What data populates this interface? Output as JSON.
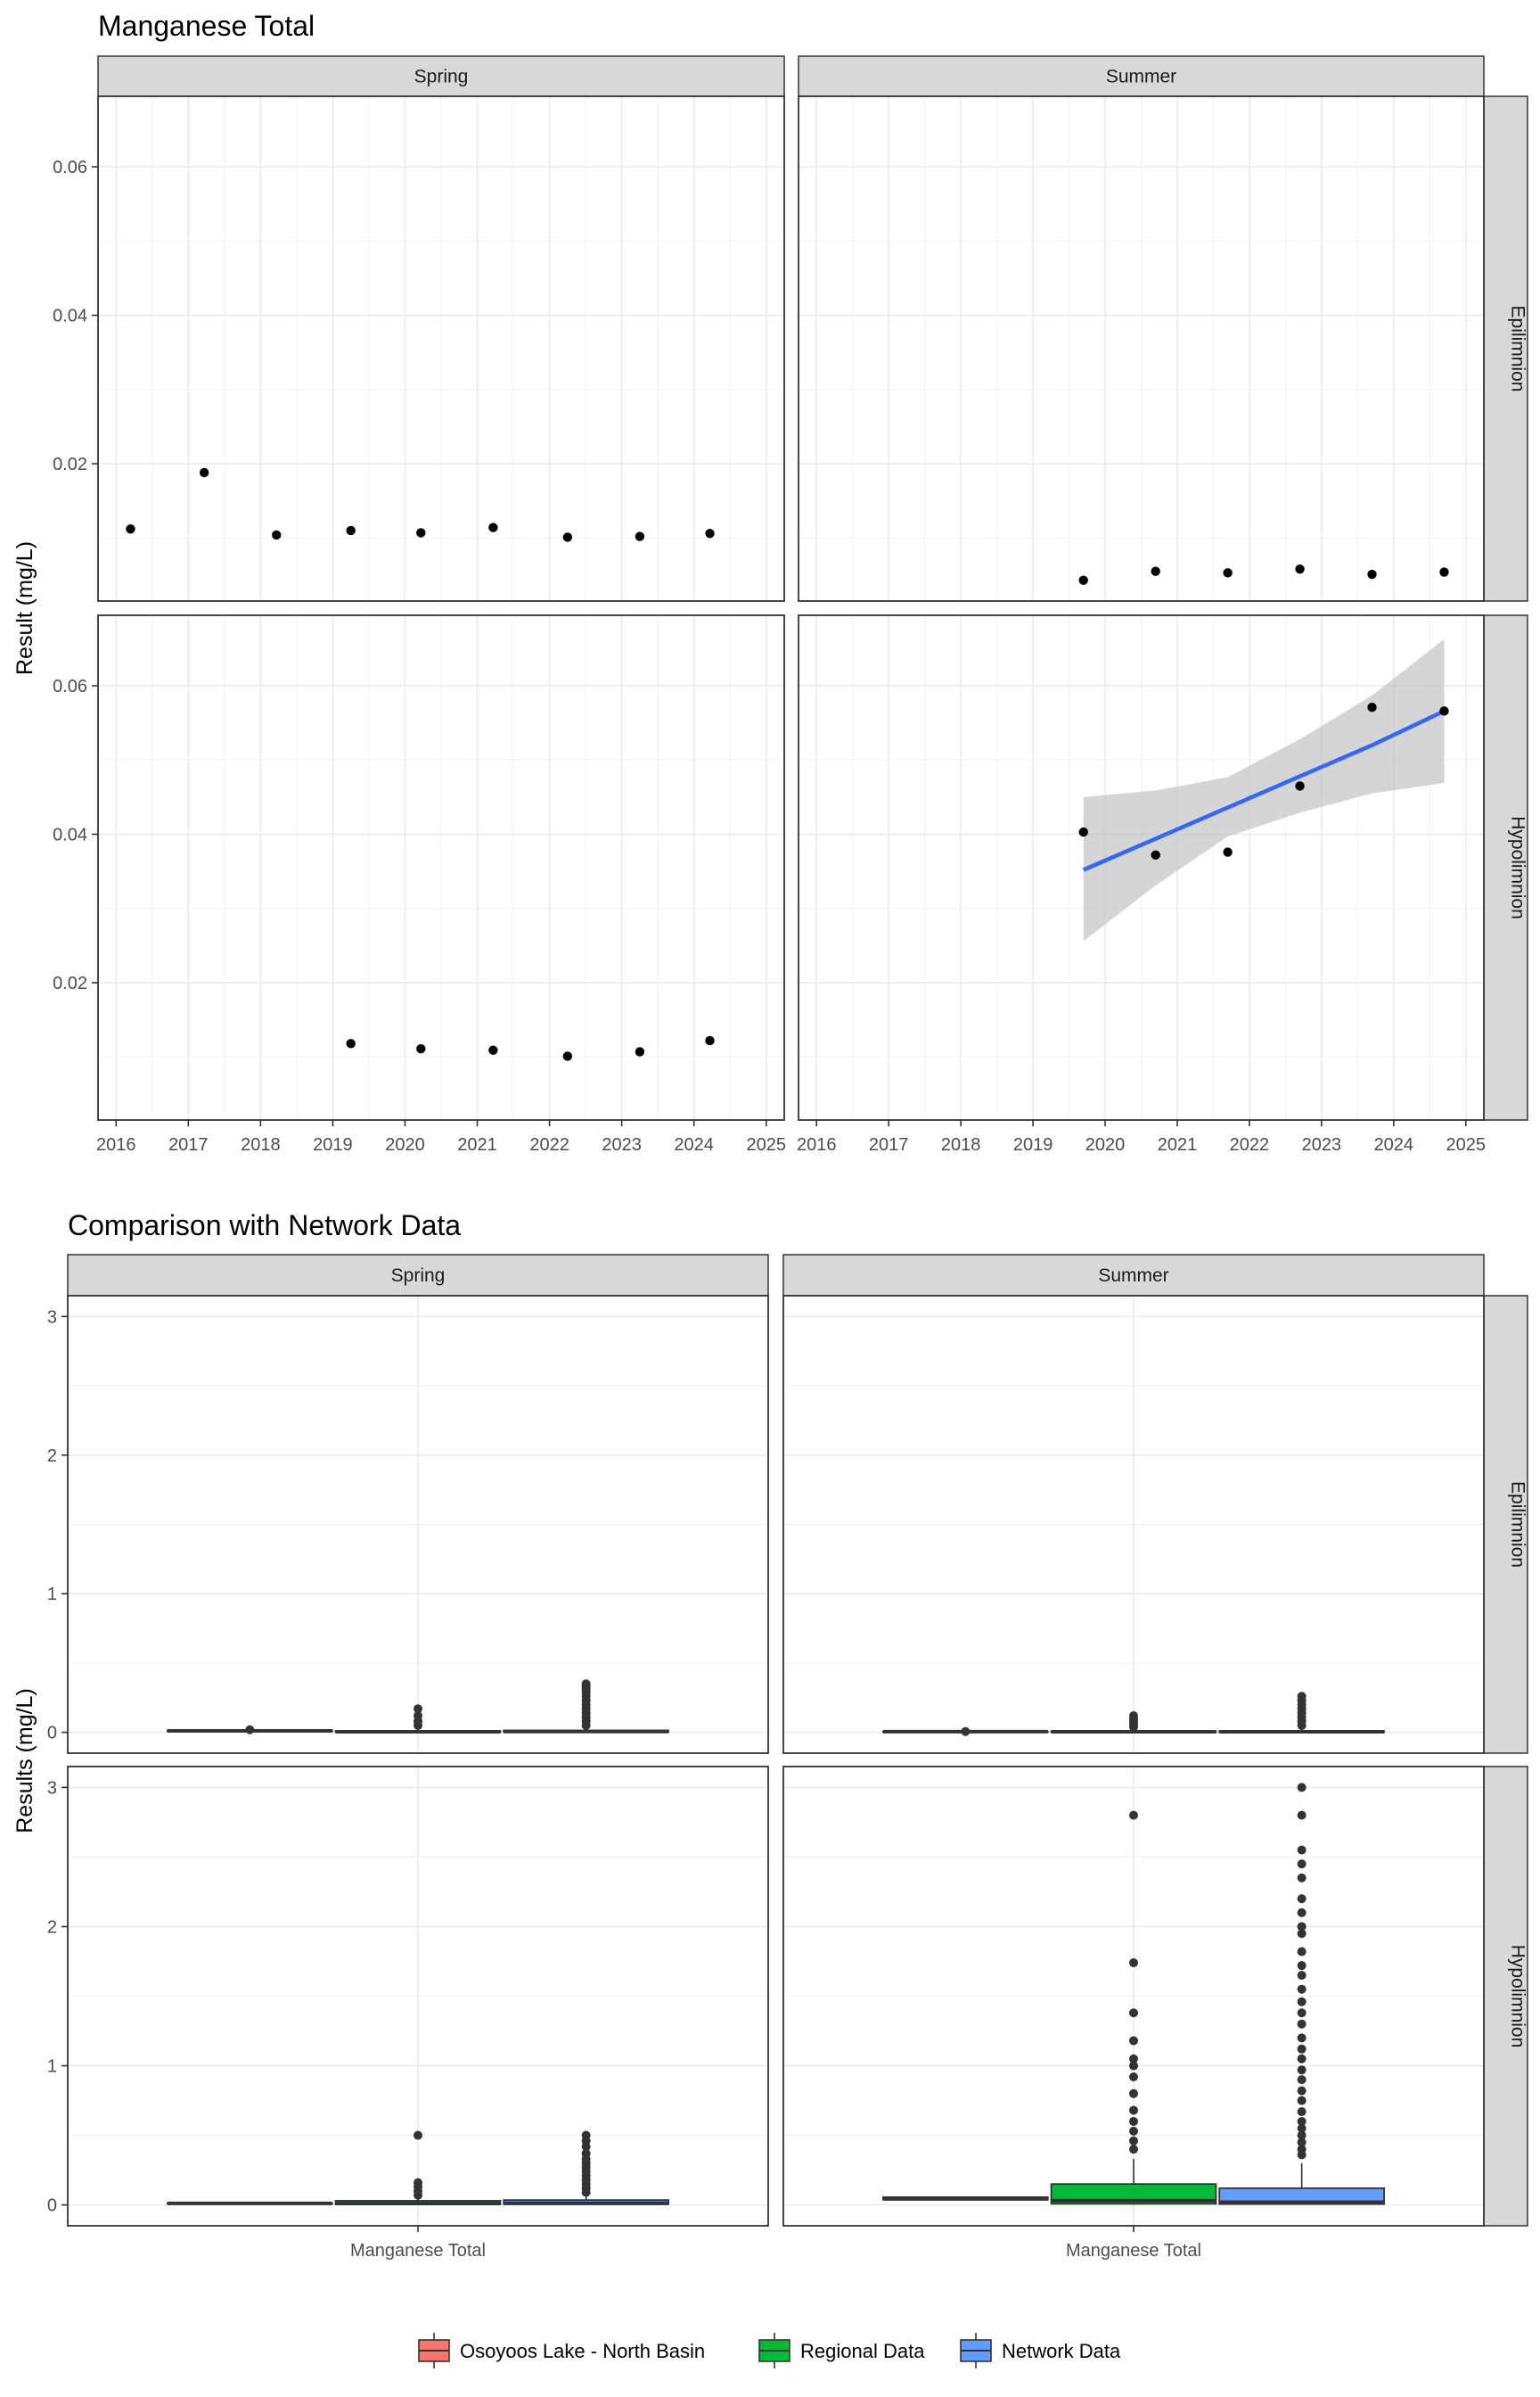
{
  "chart_data": [
    {
      "type": "scatter",
      "title": "Manganese Total",
      "ylabel": "Result (mg/L)",
      "xlabel": "",
      "facet_columns": [
        "Spring",
        "Summer"
      ],
      "facet_rows": [
        "Epilimnion",
        "Hypolimnion"
      ],
      "xlim": [
        2015.75,
        2025.25
      ],
      "ylim": [
        0.0015,
        0.0695
      ],
      "x_ticks": [
        "2016",
        "2017",
        "2018",
        "2019",
        "2020",
        "2021",
        "2022",
        "2023",
        "2024",
        "2025"
      ],
      "y_ticks": [
        "0.02",
        "0.04",
        "0.06"
      ],
      "y_tick_values": [
        0.02,
        0.04,
        0.06
      ],
      "grid": true,
      "point_color": "#000000",
      "trend_color": "#3366FF",
      "ribbon_color": "#BEBEBE",
      "panels": [
        {
          "column": "Spring",
          "row": "Epilimnion",
          "points": [
            {
              "x": 2016.2,
              "y": 0.0112
            },
            {
              "x": 2017.22,
              "y": 0.0188
            },
            {
              "x": 2018.22,
              "y": 0.0104
            },
            {
              "x": 2019.25,
              "y": 0.011
            },
            {
              "x": 2020.22,
              "y": 0.0107
            },
            {
              "x": 2021.22,
              "y": 0.0114
            },
            {
              "x": 2022.25,
              "y": 0.0101
            },
            {
              "x": 2023.25,
              "y": 0.0102
            },
            {
              "x": 2024.22,
              "y": 0.0106
            }
          ]
        },
        {
          "column": "Summer",
          "row": "Epilimnion",
          "points": [
            {
              "x": 2019.7,
              "y": 0.0043
            },
            {
              "x": 2020.7,
              "y": 0.0055
            },
            {
              "x": 2021.7,
              "y": 0.0053
            },
            {
              "x": 2022.7,
              "y": 0.0058
            },
            {
              "x": 2023.7,
              "y": 0.0051
            },
            {
              "x": 2024.7,
              "y": 0.0054
            }
          ]
        },
        {
          "column": "Spring",
          "row": "Hypolimnion",
          "points": [
            {
              "x": 2019.25,
              "y": 0.0118
            },
            {
              "x": 2020.22,
              "y": 0.0111
            },
            {
              "x": 2021.22,
              "y": 0.0109
            },
            {
              "x": 2022.25,
              "y": 0.0101
            },
            {
              "x": 2023.25,
              "y": 0.0107
            },
            {
              "x": 2024.22,
              "y": 0.0122
            }
          ]
        },
        {
          "column": "Summer",
          "row": "Hypolimnion",
          "points": [
            {
              "x": 2019.7,
              "y": 0.0403
            },
            {
              "x": 2020.7,
              "y": 0.0372
            },
            {
              "x": 2021.7,
              "y": 0.0376
            },
            {
              "x": 2022.7,
              "y": 0.0465
            },
            {
              "x": 2023.7,
              "y": 0.0571
            },
            {
              "x": 2024.7,
              "y": 0.0566
            }
          ],
          "trend": {
            "x": [
              2019.7,
              2020.7,
              2021.7,
              2022.7,
              2023.7,
              2024.7
            ],
            "fit": [
              0.0352,
              0.0394,
              0.0436,
              0.0478,
              0.052,
              0.0566
            ],
            "lower": [
              0.0256,
              0.0331,
              0.0397,
              0.0429,
              0.0455,
              0.0469
            ],
            "upper": [
              0.045,
              0.0459,
              0.0477,
              0.0528,
              0.0587,
              0.0663
            ]
          }
        }
      ]
    },
    {
      "type": "box",
      "title": "Comparison with Network Data",
      "ylabel": "Results (mg/L)",
      "xlabel": "",
      "facet_columns": [
        "Spring",
        "Summer"
      ],
      "facet_rows": [
        "Epilimnion",
        "Hypolimnion"
      ],
      "category": "Manganese Total",
      "ylim": [
        -0.15,
        3.15
      ],
      "y_ticks": [
        "0",
        "1",
        "2",
        "3"
      ],
      "y_tick_values": [
        0,
        1,
        2,
        3
      ],
      "grid": true,
      "legend_position": "bottom",
      "groups": [
        {
          "name": "Osoyoos Lake - North Basin",
          "color": "#F8766D"
        },
        {
          "name": "Regional Data",
          "color": "#00BA38"
        },
        {
          "name": "Network Data",
          "color": "#619CFF"
        }
      ],
      "panels": [
        {
          "column": "Spring",
          "row": "Epilimnion",
          "boxes": [
            {
              "group": "Osoyoos Lake - North Basin",
              "q1": 0.008,
              "median": 0.011,
              "q3": 0.014,
              "lower": 0.006,
              "upper": 0.018,
              "outliers": [
                0.019
              ]
            },
            {
              "group": "Regional Data",
              "q1": 0.002,
              "median": 0.004,
              "q3": 0.01,
              "lower": 0.001,
              "upper": 0.02,
              "outliers": [
                0.05,
                0.08,
                0.12,
                0.17
              ]
            },
            {
              "group": "Network Data",
              "q1": 0.003,
              "median": 0.006,
              "q3": 0.014,
              "lower": 0.001,
              "upper": 0.03,
              "outliers": [
                0.05,
                0.08,
                0.11,
                0.14,
                0.17,
                0.2,
                0.23,
                0.26,
                0.29,
                0.31,
                0.33,
                0.35
              ]
            }
          ]
        },
        {
          "column": "Summer",
          "row": "Epilimnion",
          "boxes": [
            {
              "group": "Osoyoos Lake - North Basin",
              "q1": 0.004,
              "median": 0.005,
              "q3": 0.006,
              "lower": 0.004,
              "upper": 0.006,
              "outliers": [
                0.006
              ]
            },
            {
              "group": "Regional Data",
              "q1": 0.002,
              "median": 0.004,
              "q3": 0.008,
              "lower": 0.001,
              "upper": 0.02,
              "outliers": [
                0.04,
                0.06,
                0.08,
                0.1,
                0.12
              ]
            },
            {
              "group": "Network Data",
              "q1": 0.002,
              "median": 0.004,
              "q3": 0.01,
              "lower": 0.001,
              "upper": 0.025,
              "outliers": [
                0.05,
                0.08,
                0.11,
                0.14,
                0.17,
                0.2,
                0.23,
                0.26
              ]
            }
          ]
        },
        {
          "column": "Spring",
          "row": "Hypolimnion",
          "boxes": [
            {
              "group": "Osoyoos Lake - North Basin",
              "q1": 0.01,
              "median": 0.011,
              "q3": 0.012,
              "lower": 0.01,
              "upper": 0.012,
              "outliers": []
            },
            {
              "group": "Regional Data",
              "q1": 0.004,
              "median": 0.01,
              "q3": 0.03,
              "lower": 0.001,
              "upper": 0.05,
              "outliers": [
                0.07,
                0.1,
                0.13,
                0.16,
                0.5
              ]
            },
            {
              "group": "Network Data",
              "q1": 0.005,
              "median": 0.012,
              "q3": 0.035,
              "lower": 0.001,
              "upper": 0.07,
              "outliers": [
                0.09,
                0.12,
                0.15,
                0.18,
                0.21,
                0.24,
                0.27,
                0.3,
                0.33,
                0.37,
                0.42,
                0.46,
                0.5
              ]
            }
          ]
        },
        {
          "column": "Summer",
          "row": "Hypolimnion",
          "boxes": [
            {
              "group": "Osoyoos Lake - North Basin",
              "q1": 0.038,
              "median": 0.043,
              "q3": 0.056,
              "lower": 0.037,
              "upper": 0.057,
              "outliers": []
            },
            {
              "group": "Regional Data",
              "q1": 0.008,
              "median": 0.03,
              "q3": 0.15,
              "lower": 0.001,
              "upper": 0.33,
              "outliers": [
                0.4,
                0.46,
                0.53,
                0.6,
                0.68,
                0.8,
                0.92,
                1.0,
                1.05,
                1.18,
                1.38,
                1.74,
                2.8
              ]
            },
            {
              "group": "Network Data",
              "q1": 0.006,
              "median": 0.02,
              "q3": 0.12,
              "lower": 0.001,
              "upper": 0.3,
              "outliers": [
                0.36,
                0.4,
                0.45,
                0.5,
                0.55,
                0.6,
                0.67,
                0.75,
                0.82,
                0.9,
                0.97,
                1.05,
                1.12,
                1.2,
                1.3,
                1.38,
                1.46,
                1.55,
                1.65,
                1.72,
                1.82,
                1.95,
                2.0,
                2.1,
                2.2,
                2.35,
                2.45,
                2.55,
                2.8,
                3.0
              ]
            }
          ]
        }
      ]
    }
  ]
}
